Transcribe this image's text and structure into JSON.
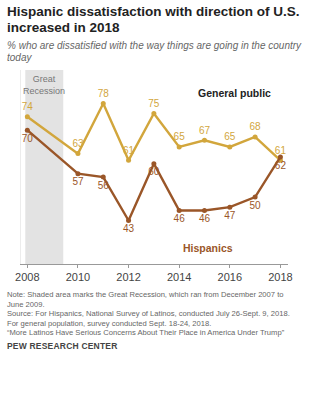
{
  "chart_data": {
    "type": "line",
    "title": "Hispanic dissatisfaction with direction of U.S. increased in 2018",
    "subtitle": "% who are dissatisfied with the way things are going in the country today",
    "x": [
      2008,
      2010,
      2011,
      2012,
      2013,
      2014,
      2015,
      2016,
      2017,
      2018
    ],
    "series": [
      {
        "name": "General public",
        "color": "#d2a63c",
        "values": [
          74,
          63,
          78,
          61,
          75,
          65,
          67,
          65,
          68,
          61
        ]
      },
      {
        "name": "Hispanics",
        "color": "#9a5628",
        "values": [
          70,
          57,
          56,
          43,
          60,
          46,
          46,
          47,
          50,
          62
        ]
      }
    ],
    "xlim": [
      2007.75,
      2018.3
    ],
    "xticks": [
      2008,
      2010,
      2012,
      2014,
      2016,
      2018
    ],
    "ylim": [
      30,
      88
    ],
    "yticks": [],
    "tick_labels": "x",
    "data_labels": true,
    "marker": "circle",
    "grid": false,
    "shaded": {
      "label": "Great Recession",
      "x0": 2007.92,
      "x1": 2009.42,
      "color": "#e3e3e3"
    },
    "notes": [
      "Note: Shaded area marks the Great Recession, which ran from December 2007 to June 2009.",
      "Source: For Hispanics, National Survey of Latinos, conducted July 26-Sept. 9, 2018. For general population, survey conducted Sept. 18-24, 2018.",
      "“More Latinos Have Serious Concerns About Their Place in America Under Trump”"
    ],
    "credit": "PEW RESEARCH CENTER"
  }
}
